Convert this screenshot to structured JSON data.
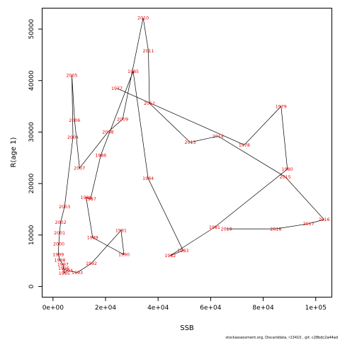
{
  "chart_data": {
    "type": "scatter",
    "xlabel": "SSB",
    "ylabel": "R(age 1)",
    "xlim": [
      -4000,
      106000
    ],
    "ylim": [
      -2000,
      54000
    ],
    "x_ticks": [
      0,
      20000,
      40000,
      60000,
      80000,
      100000
    ],
    "x_tick_labels": [
      "0e+00",
      "2e+04",
      "4e+04",
      "6e+04",
      "8e+04",
      "1e+05"
    ],
    "y_ticks": [
      0,
      10000,
      20000,
      30000,
      40000,
      50000
    ],
    "y_tick_labels": [
      "0",
      "10000",
      "20000",
      "30000",
      "40000",
      "50000"
    ],
    "line_color": "#000000",
    "label_color": "#ee0000",
    "grid": false,
    "points": [
      {
        "year": "1977",
        "ssb": 24300,
        "r": 38500
      },
      {
        "year": "1978",
        "ssb": 72800,
        "r": 27500
      },
      {
        "year": "1979",
        "ssb": 86800,
        "r": 35000
      },
      {
        "year": "1980",
        "ssb": 89200,
        "r": 22800
      },
      {
        "year": "1981",
        "ssb": 61500,
        "r": 11500
      },
      {
        "year": "1982",
        "ssb": 44600,
        "r": 6000
      },
      {
        "year": "1983",
        "ssb": 49500,
        "r": 7000
      },
      {
        "year": "1984",
        "ssb": 36200,
        "r": 21000
      },
      {
        "year": "1985",
        "ssb": 30500,
        "r": 41800
      },
      {
        "year": "1986",
        "ssb": 18200,
        "r": 25500
      },
      {
        "year": "1987",
        "ssb": 14300,
        "r": 17000
      },
      {
        "year": "1988",
        "ssb": 12600,
        "r": 17300
      },
      {
        "year": "1989",
        "ssb": 15100,
        "r": 9500
      },
      {
        "year": "1990",
        "ssb": 27000,
        "r": 6200
      },
      {
        "year": "1991",
        "ssb": 25900,
        "r": 10900
      },
      {
        "year": "1992",
        "ssb": 14600,
        "r": 4500
      },
      {
        "year": "1993",
        "ssb": 9200,
        "r": 2700
      },
      {
        "year": "1994",
        "ssb": 5400,
        "r": 3100
      },
      {
        "year": "1995",
        "ssb": 4300,
        "r": 2600
      },
      {
        "year": "1996",
        "ssb": 4100,
        "r": 3500
      },
      {
        "year": "1997",
        "ssb": 3800,
        "r": 4300
      },
      {
        "year": "1998",
        "ssb": 2600,
        "r": 5100
      },
      {
        "year": "1999",
        "ssb": 2000,
        "r": 6200
      },
      {
        "year": "2000",
        "ssb": 2200,
        "r": 8300
      },
      {
        "year": "2001",
        "ssb": 2500,
        "r": 10400
      },
      {
        "year": "2002",
        "ssb": 2900,
        "r": 12500
      },
      {
        "year": "2003",
        "ssb": 4400,
        "r": 15500
      },
      {
        "year": "2004",
        "ssb": 7600,
        "r": 29000
      },
      {
        "year": "2005",
        "ssb": 7200,
        "r": 41000
      },
      {
        "year": "2006",
        "ssb": 8200,
        "r": 32300
      },
      {
        "year": "2007",
        "ssb": 10100,
        "r": 23000
      },
      {
        "year": "2008",
        "ssb": 20900,
        "r": 30000
      },
      {
        "year": "2009",
        "ssb": 26500,
        "r": 32500
      },
      {
        "year": "2010",
        "ssb": 34300,
        "r": 52200
      },
      {
        "year": "2011",
        "ssb": 36300,
        "r": 45800
      },
      {
        "year": "2012",
        "ssb": 36700,
        "r": 35600
      },
      {
        "year": "2013",
        "ssb": 52200,
        "r": 28000
      },
      {
        "year": "2014",
        "ssb": 62800,
        "r": 29200
      },
      {
        "year": "2015",
        "ssb": 88400,
        "r": 21300
      },
      {
        "year": "2016",
        "ssb": 103200,
        "r": 13000
      },
      {
        "year": "2017",
        "ssb": 97300,
        "r": 12200
      },
      {
        "year": "2018",
        "ssb": 84800,
        "r": 11200
      },
      {
        "year": "2019",
        "ssb": 66000,
        "r": 11200
      }
    ]
  },
  "footer": "stockassessment.org, Discarddata, r13410 , git: c28bdc2a44ad"
}
